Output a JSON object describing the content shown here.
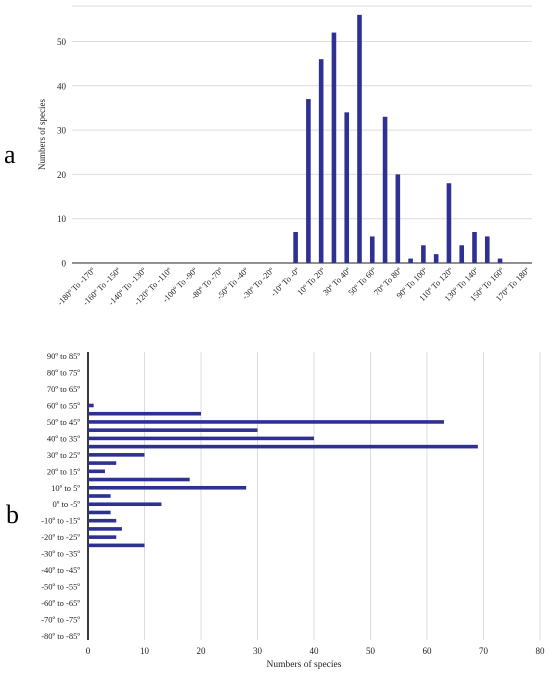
{
  "panel_labels": {
    "a": "a",
    "b": "b"
  },
  "colors": {
    "bar": "#2e3192",
    "grid": "#dcdcdc",
    "axis": "#222222"
  },
  "chart_data": [
    {
      "type": "bar",
      "orientation": "vertical",
      "panel": "a",
      "ylabel": "Numbers of species",
      "xlabel": "",
      "ylim": [
        0,
        58
      ],
      "yticks": [
        0,
        10,
        20,
        30,
        40,
        50
      ],
      "grid": true,
      "x_tick_labels": [
        "-180º To -170º",
        "-160º To -150º",
        "-140º To -130º",
        "-120º To -110º",
        "-100º To -90º",
        "-80º To -70º",
        "-50º To -40º",
        "-30º To -20º",
        "-10º To -0º",
        "10º To 20º",
        "30º To 40º",
        "50º To 60º",
        "70º To 80º",
        "90º To 100º",
        "110º To 120º",
        "130º To 140º",
        "150º To 160º",
        "170º To 180º"
      ],
      "categories": [
        "-180º To -170º",
        "-170º To -160º",
        "-160º To -150º",
        "-150º To -140º",
        "-140º To -130º",
        "-130º To -120º",
        "-120º To -110º",
        "-110º To -100º",
        "-100º To -90º",
        "-90º To -80º",
        "-80º To -70º",
        "-70º To -60º",
        "-60º To -50º",
        "-50º To -40º",
        "-40º To -30º",
        "-30º To -20º",
        "-20º To -10º",
        "-10º To -0º",
        "0º To 10º",
        "10º To 20º",
        "20º To 30º",
        "30º To 40º",
        "40º To 50º",
        "50º To 60º",
        "60º To 70º",
        "70º To 80º",
        "80º To 90º",
        "90º To 100º",
        "100º To 110º",
        "110º To 120º",
        "120º To 130º",
        "130º To 140º",
        "140º To 150º",
        "150º To 160º",
        "160º To 170º",
        "170º To 180º"
      ],
      "values": [
        0,
        0,
        0,
        0,
        0,
        0,
        0,
        0,
        0,
        0,
        0,
        0,
        0,
        0,
        0,
        0,
        0,
        7,
        37,
        46,
        52,
        34,
        56,
        6,
        33,
        20,
        1,
        4,
        2,
        18,
        4,
        7,
        6,
        1,
        0,
        0
      ]
    },
    {
      "type": "bar",
      "orientation": "horizontal",
      "panel": "b",
      "xlabel": "Numbers of species",
      "ylabel": "",
      "xlim": [
        0,
        80
      ],
      "xticks": [
        0,
        10,
        20,
        30,
        40,
        50,
        60,
        70,
        80
      ],
      "grid": true,
      "y_tick_labels": [
        "90º to 85º",
        "80º to 75º",
        "70º to 65º",
        "60º to 55º",
        "50º to 45º",
        "40º to 35º",
        "30º to 25º",
        "20º to 15º",
        "10º to 5º",
        "0º to -5º",
        "-10º to -15º",
        "-20º to -25º",
        "-30º to -35º",
        "-40º to -45º",
        "-50º to -55º",
        "-60º to -65º",
        "-70º to -75º",
        "-80º to -85º"
      ],
      "categories": [
        "90º to 85º",
        "85º to 80º",
        "80º to 75º",
        "75º to 70º",
        "70º to 65º",
        "65º to 60º",
        "60º to 55º",
        "55º to 50º",
        "50º to 45º",
        "45º to 40º",
        "40º to 35º",
        "35º to 30º",
        "30º to 25º",
        "25º to 20º",
        "20º to 15º",
        "15º to 10º",
        "10º to 5º",
        "5º to 0º",
        "0º to -5º",
        "-5º to -10º",
        "-10º to -15º",
        "-15º to -20º",
        "-20º to -25º",
        "-25º to -30º",
        "-30º to -35º",
        "-35º to -40º",
        "-40º to -45º",
        "-45º to -50º",
        "-50º to -55º",
        "-55º to -60º",
        "-60º to -65º",
        "-65º to -70º",
        "-70º to -75º",
        "-75º to -80º",
        "-80º to -85º"
      ],
      "values": [
        0,
        0,
        0,
        0,
        0,
        0,
        1,
        20,
        63,
        30,
        40,
        69,
        10,
        5,
        3,
        18,
        28,
        4,
        13,
        4,
        5,
        6,
        5,
        10,
        0,
        0,
        0,
        0,
        0,
        0,
        0,
        0,
        0,
        0,
        0
      ]
    }
  ]
}
